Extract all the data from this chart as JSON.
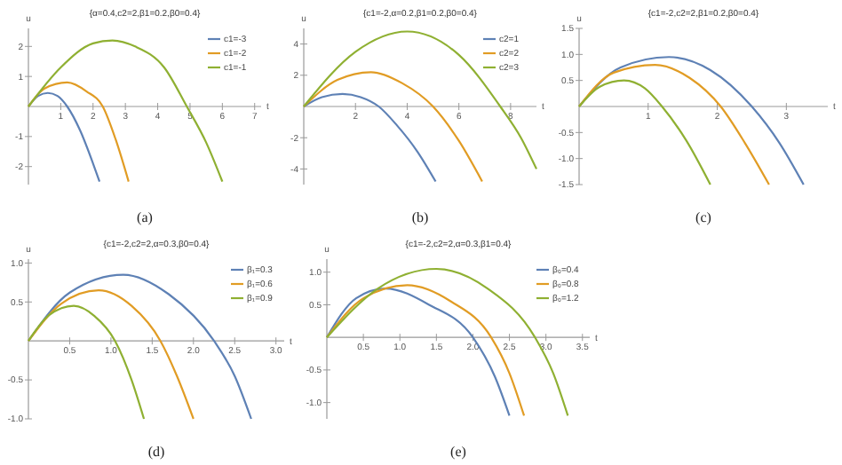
{
  "chart_data": [
    {
      "type": "line",
      "title": "{α=0.4,c2=2,β1=0.2,β0=0.4}",
      "xlabel": "t",
      "ylabel": "u",
      "annotations": [
        "(a)"
      ],
      "legend": "top right",
      "xlim": [
        0,
        7.2
      ],
      "ylim": [
        -2.6,
        2.6
      ],
      "xticks": [
        1,
        2,
        3,
        4,
        5,
        6,
        7
      ],
      "yticks": [
        -2,
        -1,
        1,
        2
      ],
      "series": [
        {
          "name": "c1=-3",
          "color": "#5e81b5",
          "x": [
            0,
            0.3,
            0.6,
            0.9,
            1.2,
            1.6,
            2.0,
            2.2
          ],
          "values": [
            0,
            0.35,
            0.45,
            0.35,
            0,
            -0.8,
            -1.9,
            -2.5
          ]
        },
        {
          "name": "c1=-2",
          "color": "#e19c24",
          "x": [
            0,
            0.5,
            1.2,
            1.8,
            2.3,
            2.7,
            3.1
          ],
          "values": [
            0,
            0.6,
            0.8,
            0.5,
            0,
            -1.1,
            -2.5
          ]
        },
        {
          "name": "c1=-1",
          "color": "#8fb032",
          "x": [
            0,
            1,
            2,
            2.6,
            3.3,
            4.2,
            4.9,
            5.5,
            6.0
          ],
          "values": [
            0,
            1.3,
            2.1,
            2.2,
            2.0,
            1.3,
            0,
            -1.2,
            -2.5
          ]
        }
      ]
    },
    {
      "type": "line",
      "title": "{c1=-2,α=0.2,β1=0.2,β0=0.4}",
      "xlabel": "t",
      "ylabel": "u",
      "annotations": [
        "(b)"
      ],
      "legend": "top right",
      "xlim": [
        0,
        9
      ],
      "ylim": [
        -5,
        5
      ],
      "xticks": [
        2,
        4,
        6,
        8
      ],
      "yticks": [
        -4,
        -2,
        2,
        4
      ],
      "series": [
        {
          "name": "c2=1",
          "color": "#5e81b5",
          "x": [
            0,
            0.7,
            1.5,
            2.2,
            2.9,
            3.6,
            4.4,
            5.1
          ],
          "values": [
            0,
            0.6,
            0.8,
            0.6,
            0,
            -1.2,
            -2.9,
            -4.8
          ]
        },
        {
          "name": "c2=2",
          "color": "#e19c24",
          "x": [
            0,
            1.3,
            2.6,
            3.8,
            5.0,
            6.0,
            6.9
          ],
          "values": [
            0,
            1.7,
            2.2,
            1.5,
            0,
            -2.2,
            -4.8
          ]
        },
        {
          "name": "c2=3",
          "color": "#8fb032",
          "x": [
            0,
            2,
            4,
            6,
            7.6,
            8.4,
            9
          ],
          "values": [
            0,
            3.5,
            4.8,
            3.3,
            0,
            -2.0,
            -4.0
          ]
        }
      ]
    },
    {
      "type": "line",
      "title": "{c1=-2,c2=2,β1=0.2,β0=0.4}",
      "xlabel": "t",
      "ylabel": "u",
      "annotations": [
        "(c)"
      ],
      "xlim": [
        0,
        3.6
      ],
      "ylim": [
        -1.5,
        1.5
      ],
      "xticks": [
        1,
        2,
        3
      ],
      "yticks": [
        {
          "value": -1.5,
          "label": "-1.5"
        },
        {
          "value": -1,
          "label": "-1.0"
        },
        {
          "value": -0.5,
          "label": "-0.5"
        },
        0.5,
        {
          "value": 1,
          "label": "1.0"
        },
        1.5
      ],
      "series": [
        {
          "color": "#5e81b5",
          "x": [
            0,
            0.6,
            1.3,
            1.9,
            2.5,
            2.9,
            3.25
          ],
          "values": [
            0,
            0.75,
            0.95,
            0.7,
            0,
            -0.7,
            -1.5
          ]
        },
        {
          "color": "#e19c24",
          "x": [
            0,
            0.5,
            1.1,
            1.6,
            2.05,
            2.4,
            2.75
          ],
          "values": [
            0,
            0.65,
            0.8,
            0.55,
            0,
            -0.7,
            -1.5
          ]
        },
        {
          "color": "#8fb032",
          "x": [
            0,
            0.3,
            0.65,
            0.95,
            1.2,
            1.55,
            1.9
          ],
          "values": [
            0,
            0.38,
            0.5,
            0.35,
            0,
            -0.65,
            -1.5
          ]
        }
      ]
    },
    {
      "type": "line",
      "title": "{c1=-2,c2=2,α=0.3,β0=0.4}",
      "xlabel": "t",
      "ylabel": "u",
      "annotations": [
        "(d)"
      ],
      "legend": "top right",
      "xlim": [
        0,
        3.1
      ],
      "ylim": [
        -1,
        1.05
      ],
      "xticks": [
        0.5,
        {
          "value": 1,
          "label": "1.0"
        },
        1.5,
        {
          "value": 2,
          "label": "2.0"
        },
        2.5,
        {
          "value": 3,
          "label": "3.0"
        }
      ],
      "yticks": [
        {
          "value": -1,
          "label": "-1.0"
        },
        -0.5,
        0.5,
        {
          "value": 1,
          "label": "1.0"
        }
      ],
      "series": [
        {
          "name": "β₁=0.3",
          "color": "#5e81b5",
          "x": [
            0,
            0.5,
            1.15,
            1.7,
            2.25,
            2.5,
            2.7
          ],
          "values": [
            0,
            0.62,
            0.85,
            0.6,
            0,
            -0.45,
            -1
          ]
        },
        {
          "name": "β₁=0.6",
          "color": "#e19c24",
          "x": [
            0,
            0.4,
            0.85,
            1.25,
            1.6,
            1.8,
            2.0
          ],
          "values": [
            0,
            0.48,
            0.65,
            0.45,
            0,
            -0.45,
            -1
          ]
        },
        {
          "name": "β₁=0.9",
          "color": "#8fb032",
          "x": [
            0,
            0.25,
            0.55,
            0.8,
            1.05,
            1.25,
            1.4
          ],
          "values": [
            0,
            0.33,
            0.45,
            0.32,
            0,
            -0.5,
            -1
          ]
        }
      ]
    },
    {
      "type": "line",
      "title": "{c1=-2,c2=2,α=0.3,β1=0.4}",
      "xlabel": "t",
      "ylabel": "u",
      "annotations": [
        "(e)"
      ],
      "legend": "top right",
      "xlim": [
        0,
        3.6
      ],
      "ylim": [
        -1.25,
        1.2
      ],
      "xticks": [
        0.5,
        {
          "value": 1,
          "label": "1.0"
        },
        1.5,
        {
          "value": 2,
          "label": "2.0"
        },
        2.5,
        {
          "value": 3,
          "label": "3.0"
        },
        3.5
      ],
      "yticks": [
        {
          "value": -1,
          "label": "-1.0"
        },
        -0.5,
        0.5,
        {
          "value": 1,
          "label": "1.0"
        }
      ],
      "series": [
        {
          "name": "β₀=0.4",
          "color": "#5e81b5",
          "x": [
            0,
            0.4,
            0.8,
            1.4,
            2.0,
            2.3,
            2.5
          ],
          "values": [
            0,
            0.6,
            0.75,
            0.5,
            0,
            -0.6,
            -1.2
          ]
        },
        {
          "name": "β₀=0.8",
          "color": "#e19c24",
          "x": [
            0,
            0.5,
            1.1,
            1.7,
            2.25,
            2.5,
            2.7
          ],
          "values": [
            0,
            0.6,
            0.8,
            0.55,
            0,
            -0.55,
            -1.2
          ]
        },
        {
          "name": "β₀=1.2",
          "color": "#8fb032",
          "x": [
            0,
            0.7,
            1.5,
            2.2,
            2.85,
            3.1,
            3.3
          ],
          "values": [
            0,
            0.75,
            1.05,
            0.75,
            0,
            -0.55,
            -1.2
          ]
        }
      ]
    }
  ]
}
